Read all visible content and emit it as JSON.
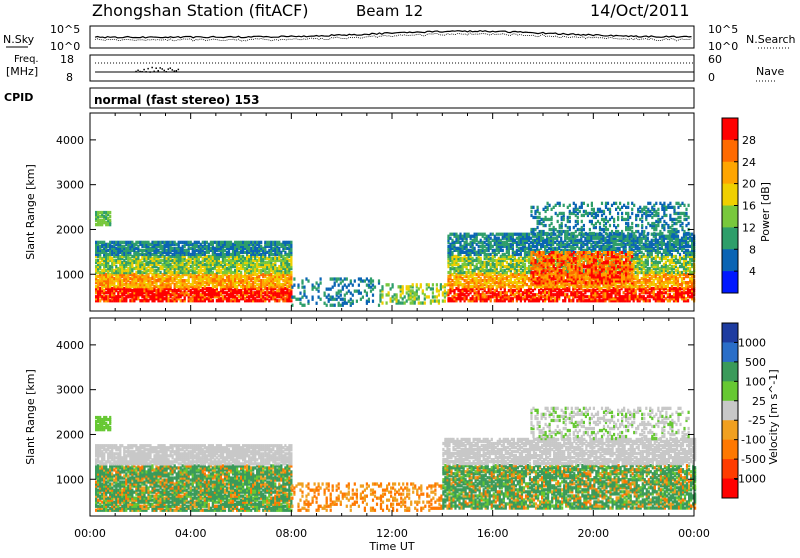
{
  "header": {
    "title": "Zhongshan Station (fitACF)",
    "beam": "Beam 12",
    "date": "14/Oct/2011"
  },
  "noise_panel": {
    "left_label": "N.Sky",
    "left_ticks": [
      "10^5",
      "10^0"
    ],
    "right_label": "N.Search",
    "right_ticks": [
      "10^5",
      "10^0"
    ]
  },
  "freq_panel": {
    "left_label_1": "Freq.",
    "left_label_2": "[MHz]",
    "left_ticks": [
      "18",
      "8"
    ],
    "right_label": "Nave",
    "right_ticks": [
      "60",
      "0"
    ]
  },
  "cpid": {
    "label": "CPID",
    "mode": "normal (fast stereo) 153"
  },
  "x_axis": {
    "label": "Time UT",
    "ticks": [
      "00:00",
      "04:00",
      "08:00",
      "12:00",
      "16:00",
      "20:00",
      "00:00"
    ]
  },
  "chart_data": [
    {
      "type": "heatmap",
      "name": "power",
      "ylabel": "Slant Range [km]",
      "xlabel": "Time UT",
      "x_range_hours": [
        0,
        24
      ],
      "ylim_km": [
        180,
        4600
      ],
      "y_ticks": [
        "1000",
        "2000",
        "3000",
        "4000"
      ],
      "colorbar": {
        "label": "Power [dB]",
        "ticks": [
          "28",
          "24",
          "20",
          "16",
          "12",
          "8",
          "4"
        ],
        "colors": [
          "#ff0000",
          "#ff6a00",
          "#ffa500",
          "#f0d000",
          "#78c83c",
          "#2e9e6a",
          "#0a64b4",
          "#0018ff"
        ]
      }
    },
    {
      "type": "heatmap",
      "name": "velocity",
      "ylabel": "Slant Range [km]",
      "xlabel": "Time UT",
      "x_range_hours": [
        0,
        24
      ],
      "ylim_km": [
        180,
        4600
      ],
      "y_ticks": [
        "1000",
        "2000",
        "3000",
        "4000"
      ],
      "colorbar": {
        "label": "Velocity [m s^-1]",
        "ticks": [
          "1000",
          "500",
          "100",
          "25",
          "-25",
          "-100",
          "-500",
          "-1000"
        ],
        "colors": [
          "#1e3ca0",
          "#2a6ec8",
          "#3a9a5a",
          "#66c832",
          "#c8c8c8",
          "#f0a020",
          "#ff7800",
          "#ff3c00",
          "#ff0000"
        ]
      }
    }
  ]
}
